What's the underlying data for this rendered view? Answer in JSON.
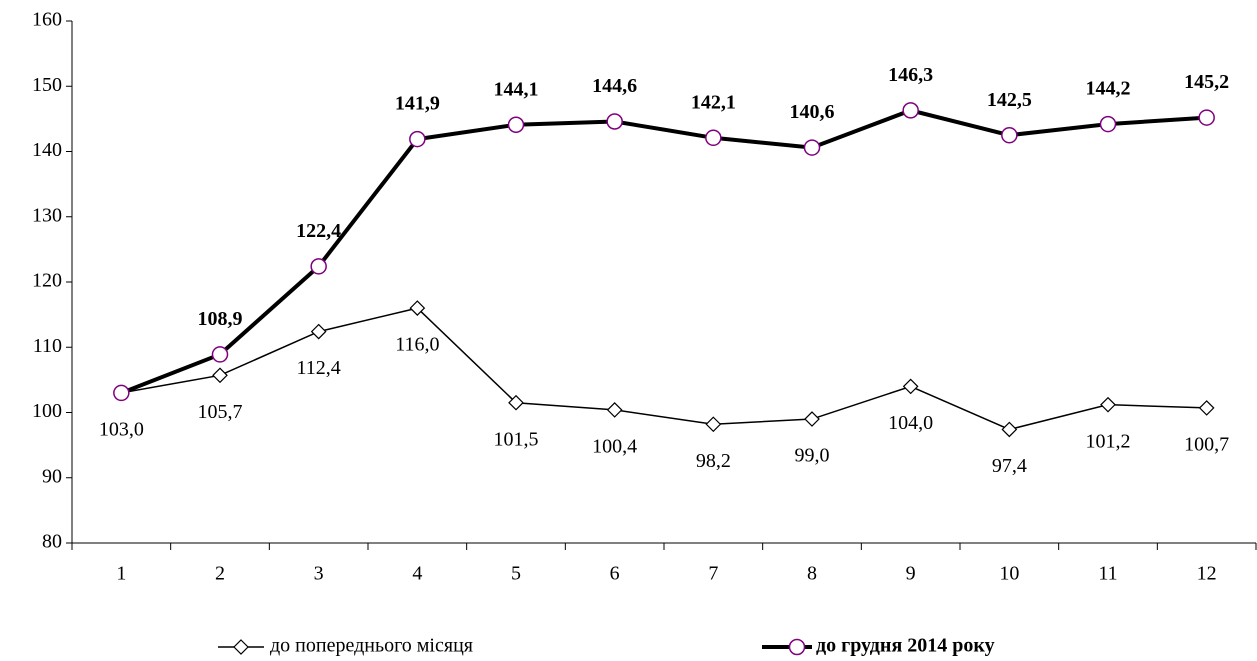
{
  "chart_data": {
    "type": "line",
    "categories": [
      "1",
      "2",
      "3",
      "4",
      "5",
      "6",
      "7",
      "8",
      "9",
      "10",
      "11",
      "12"
    ],
    "series": [
      {
        "name": "до попереднього місяця",
        "color": "#000000",
        "values": [
          103.0,
          105.7,
          112.4,
          116.0,
          101.5,
          100.4,
          98.2,
          99.0,
          104.0,
          97.4,
          101.2,
          100.7
        ],
        "value_labels": [
          "103,0",
          "105,7",
          "112,4",
          "116,0",
          "101,5",
          "100,4",
          "98,2",
          "99,0",
          "104,0",
          "97,4",
          "101,2",
          "100,7"
        ]
      },
      {
        "name": "до грудня 2014 року",
        "color": "#000000",
        "values": [
          103.0,
          108.9,
          122.4,
          141.9,
          144.1,
          144.6,
          142.1,
          140.6,
          146.3,
          142.5,
          144.2,
          145.2
        ],
        "value_labels": [
          null,
          "108,9",
          "122,4",
          "141,9",
          "144,1",
          "144,6",
          "142,1",
          "140,6",
          "146,3",
          "142,5",
          "144,2",
          "145,2"
        ]
      }
    ],
    "ylim": [
      80,
      160
    ],
    "yticks": [
      80,
      90,
      100,
      110,
      120,
      130,
      140,
      150,
      160
    ]
  }
}
